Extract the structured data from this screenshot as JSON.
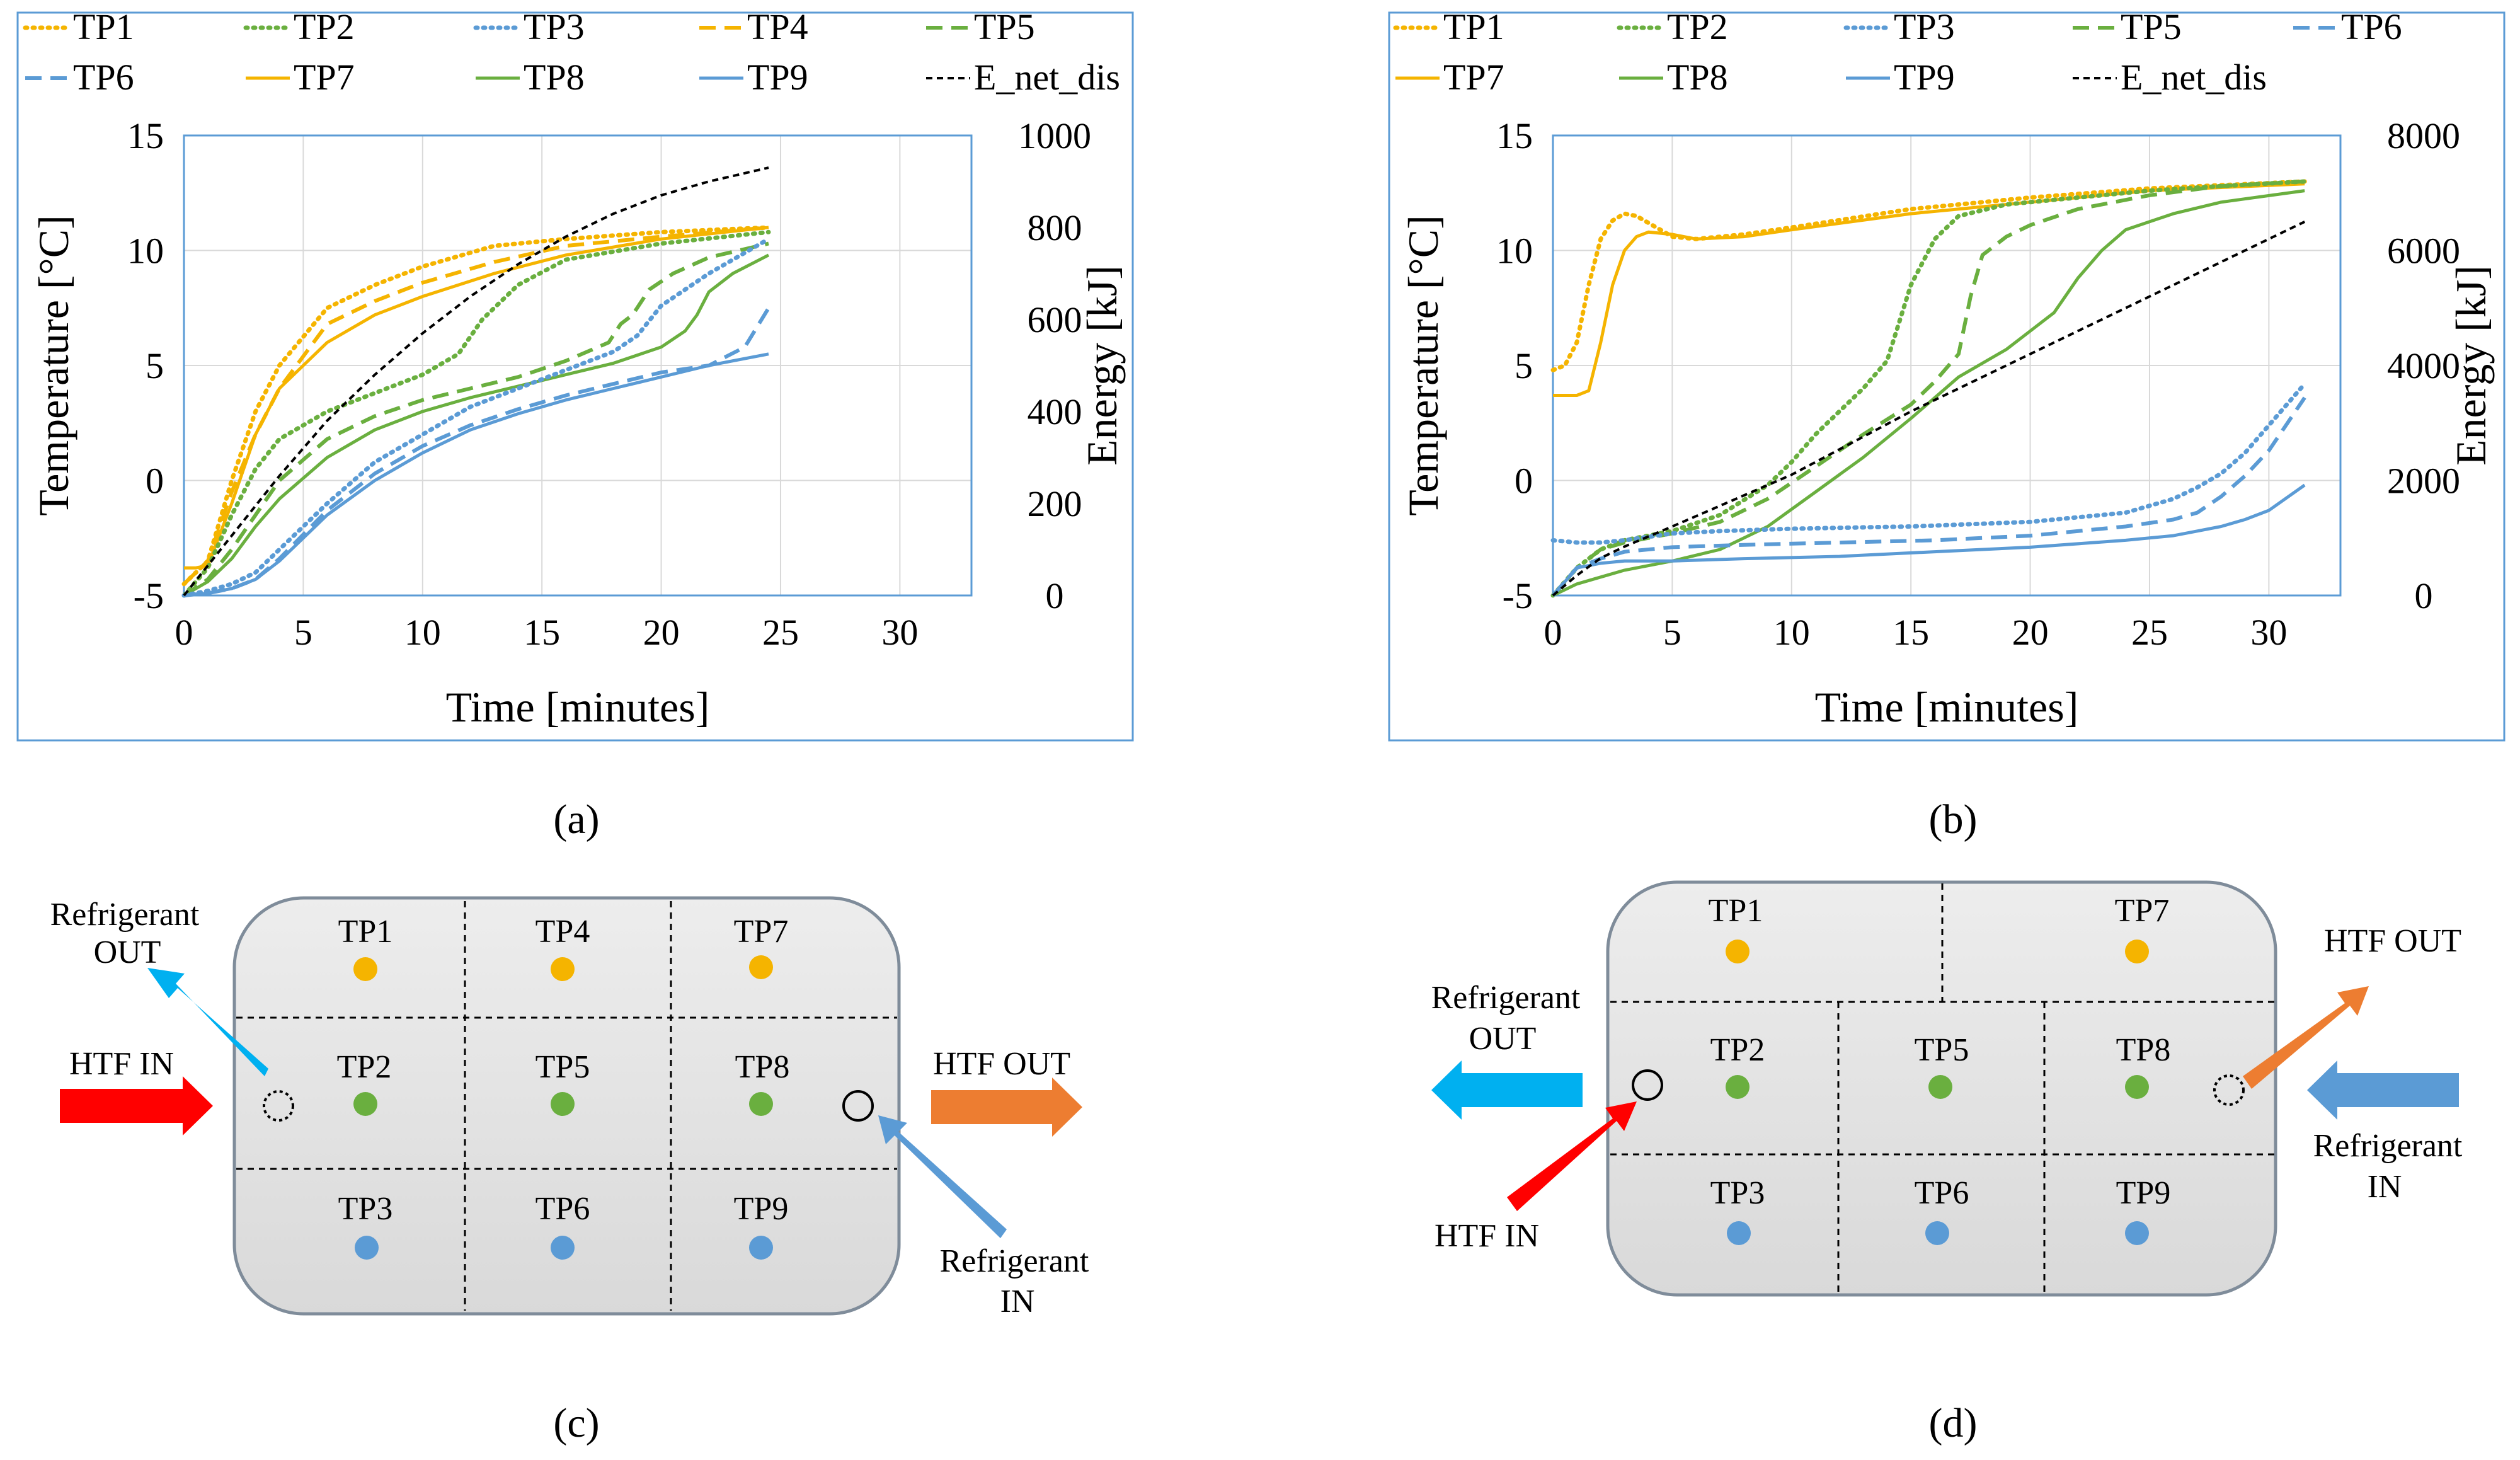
{
  "panels": {
    "a": "(a)",
    "b": "(b)",
    "c": "(c)",
    "d": "(d)"
  },
  "colors": {
    "yellow": "#F5B400",
    "green": "#6AAF3F",
    "blue": "#5B9BD5",
    "black": "#000000",
    "red": "#FF0000",
    "cyan": "#00B0F0",
    "orange": "#ED7D31",
    "steelblue": "#5B9BD5",
    "plot_frame": "#5B9BD5",
    "grid": "#D9D9D9",
    "box_fill": "#E6E6E6"
  },
  "chart_data": [
    {
      "id": "a",
      "type": "line",
      "xlabel": "Time [minutes]",
      "ylabel": "Temperature [°C]",
      "y2label": "Energy [kJ]",
      "xlim": [
        0,
        33
      ],
      "xticks": [
        0,
        5,
        10,
        15,
        20,
        25,
        30
      ],
      "ylim": [
        -5,
        15
      ],
      "yticks": [
        -5,
        0,
        5,
        10,
        15
      ],
      "y2lim": [
        0,
        1000
      ],
      "y2ticks": [
        0,
        200,
        400,
        600,
        800,
        1000
      ],
      "legend": [
        {
          "key": "TP1",
          "label": "TP1",
          "color": "#F5B400",
          "dash": "dot"
        },
        {
          "key": "TP2",
          "label": "TP2",
          "color": "#6AAF3F",
          "dash": "dot"
        },
        {
          "key": "TP3",
          "label": "TP3",
          "color": "#5B9BD5",
          "dash": "dot"
        },
        {
          "key": "TP4",
          "label": "TP4",
          "color": "#F5B400",
          "dash": "dash"
        },
        {
          "key": "TP5",
          "label": "TP5",
          "color": "#6AAF3F",
          "dash": "dash"
        },
        {
          "key": "TP6",
          "label": "TP6",
          "color": "#5B9BD5",
          "dash": "dash"
        },
        {
          "key": "TP7",
          "label": "TP7",
          "color": "#F5B400",
          "dash": "solid"
        },
        {
          "key": "TP8",
          "label": "TP8",
          "color": "#6AAF3F",
          "dash": "solid"
        },
        {
          "key": "TP9",
          "label": "TP9",
          "color": "#5B9BD5",
          "dash": "solid"
        },
        {
          "key": "E",
          "label": "E_net_dis",
          "color": "#000000",
          "dash": "fine"
        }
      ],
      "series": [
        {
          "name": "TP1",
          "axis": "y",
          "x": [
            0,
            1,
            2,
            3,
            4,
            6,
            8,
            10,
            13,
            16,
            20,
            24.5
          ],
          "y": [
            -4.5,
            -3.5,
            0,
            3,
            5,
            7.5,
            8.5,
            9.3,
            10.2,
            10.5,
            10.8,
            11
          ]
        },
        {
          "name": "TP4",
          "axis": "y",
          "x": [
            0,
            1,
            2,
            3,
            4,
            6,
            8,
            10,
            13,
            16,
            20,
            24.5
          ],
          "y": [
            -4.5,
            -3.5,
            -0.5,
            2,
            4,
            6.8,
            7.8,
            8.6,
            9.5,
            10.2,
            10.6,
            11
          ]
        },
        {
          "name": "TP7",
          "axis": "y",
          "x": [
            0,
            0.5,
            1,
            2,
            3,
            4,
            6,
            8,
            10,
            13,
            16,
            20,
            24.5
          ],
          "y": [
            -3.8,
            -3.8,
            -3.7,
            -1,
            2,
            4,
            6,
            7.2,
            8,
            9,
            9.8,
            10.5,
            11
          ]
        },
        {
          "name": "TP2",
          "axis": "y",
          "x": [
            0,
            1,
            2,
            3,
            4,
            6,
            8,
            10,
            11.5,
            12.5,
            14,
            16,
            20,
            24.5
          ],
          "y": [
            -5,
            -3.8,
            -1.5,
            0.5,
            1.8,
            3,
            3.8,
            4.6,
            5.5,
            7,
            8.5,
            9.6,
            10.3,
            10.8
          ]
        },
        {
          "name": "TP5",
          "axis": "y",
          "x": [
            0,
            1,
            2,
            3,
            4,
            6,
            8,
            10,
            12,
            14,
            16,
            17.8,
            18.3,
            18.8,
            19.5,
            20.5,
            22,
            24.5
          ],
          "y": [
            -5,
            -4.3,
            -3,
            -1.5,
            0,
            1.8,
            2.8,
            3.5,
            4,
            4.5,
            5.2,
            6,
            6.8,
            7.2,
            8.3,
            9,
            9.7,
            10.3
          ]
        },
        {
          "name": "TP8",
          "axis": "y",
          "x": [
            0,
            1,
            2,
            3,
            4,
            6,
            8,
            10,
            12,
            14,
            16,
            18,
            20,
            21,
            21.5,
            22,
            23,
            24.5
          ],
          "y": [
            -5,
            -4.4,
            -3.4,
            -2,
            -0.8,
            1,
            2.2,
            3,
            3.6,
            4.1,
            4.6,
            5.1,
            5.8,
            6.5,
            7.2,
            8.2,
            9,
            9.8
          ]
        },
        {
          "name": "TP3",
          "axis": "y",
          "x": [
            0,
            1,
            2,
            3,
            4,
            6,
            8,
            10,
            12,
            14,
            16,
            18,
            19,
            20,
            22,
            24.5
          ],
          "y": [
            -5,
            -4.8,
            -4.5,
            -4,
            -3,
            -1,
            0.8,
            2,
            3.2,
            4,
            4.8,
            5.6,
            6.3,
            7.6,
            9,
            10.5
          ]
        },
        {
          "name": "TP6",
          "axis": "y",
          "x": [
            0,
            1,
            2,
            3,
            4,
            6,
            8,
            10,
            12,
            14,
            16,
            18,
            20,
            22,
            23.5,
            24.5
          ],
          "y": [
            -5,
            -4.9,
            -4.7,
            -4.3,
            -3.4,
            -1.3,
            0.3,
            1.5,
            2.4,
            3.1,
            3.7,
            4.2,
            4.7,
            5,
            5.8,
            7.5
          ]
        },
        {
          "name": "TP9",
          "axis": "y",
          "x": [
            0,
            1,
            2,
            3,
            4,
            6,
            8,
            10,
            12,
            14,
            16,
            18,
            20,
            22,
            24.5
          ],
          "y": [
            -5,
            -4.9,
            -4.7,
            -4.3,
            -3.5,
            -1.5,
            0,
            1.2,
            2.2,
            2.9,
            3.5,
            4,
            4.5,
            5,
            5.5
          ]
        },
        {
          "name": "E",
          "axis": "y2",
          "x": [
            0,
            2,
            4,
            6,
            8,
            10,
            12,
            14,
            16,
            18,
            20,
            22,
            24.5
          ],
          "y": [
            0,
            130,
            260,
            380,
            480,
            570,
            650,
            720,
            780,
            830,
            870,
            900,
            930
          ]
        }
      ]
    },
    {
      "id": "b",
      "type": "line",
      "xlabel": "Time [minutes]",
      "ylabel": "Temperature [°C]",
      "y2label": "Energy [kJ]",
      "xlim": [
        0,
        33
      ],
      "xticks": [
        0,
        5,
        10,
        15,
        20,
        25,
        30
      ],
      "ylim": [
        -5,
        15
      ],
      "yticks": [
        -5,
        0,
        5,
        10,
        15
      ],
      "y2lim": [
        0,
        8000
      ],
      "y2ticks": [
        0,
        2000,
        4000,
        6000,
        8000
      ],
      "legend": [
        {
          "key": "TP1",
          "label": "TP1",
          "color": "#F5B400",
          "dash": "dot"
        },
        {
          "key": "TP2",
          "label": "TP2",
          "color": "#6AAF3F",
          "dash": "dot"
        },
        {
          "key": "TP3",
          "label": "TP3",
          "color": "#5B9BD5",
          "dash": "dot"
        },
        {
          "key": "TP5",
          "label": "TP5",
          "color": "#6AAF3F",
          "dash": "dash"
        },
        {
          "key": "TP6",
          "label": "TP6",
          "color": "#5B9BD5",
          "dash": "dash"
        },
        {
          "key": "TP7",
          "label": "TP7",
          "color": "#F5B400",
          "dash": "solid"
        },
        {
          "key": "TP8",
          "label": "TP8",
          "color": "#6AAF3F",
          "dash": "solid"
        },
        {
          "key": "TP9",
          "label": "TP9",
          "color": "#5B9BD5",
          "dash": "solid"
        },
        {
          "key": "E",
          "label": "E_net_dis",
          "color": "#000000",
          "dash": "fine"
        }
      ],
      "series": [
        {
          "name": "TP1",
          "axis": "y",
          "x": [
            0,
            0.5,
            1,
            1.5,
            2,
            2.5,
            3,
            3.5,
            4,
            5,
            6,
            8,
            10,
            15,
            20,
            25,
            31.5
          ],
          "y": [
            4.8,
            5,
            6,
            8.5,
            10.5,
            11.3,
            11.6,
            11.5,
            11.2,
            10.6,
            10.5,
            10.7,
            11,
            11.8,
            12.3,
            12.7,
            13
          ]
        },
        {
          "name": "TP7",
          "axis": "y",
          "x": [
            0,
            1,
            1.5,
            2,
            2.5,
            3,
            3.5,
            4,
            5,
            6,
            8,
            10,
            15,
            20,
            25,
            31.5
          ],
          "y": [
            3.7,
            3.7,
            3.9,
            6,
            8.5,
            10,
            10.6,
            10.8,
            10.7,
            10.5,
            10.6,
            10.9,
            11.6,
            12.1,
            12.6,
            12.9
          ]
        },
        {
          "name": "TP2",
          "axis": "y",
          "x": [
            0,
            1,
            2,
            3,
            5,
            7,
            9,
            10,
            11,
            12,
            13,
            14,
            15,
            16,
            17,
            19,
            22,
            25,
            28,
            31.5
          ],
          "y": [
            -5,
            -3.8,
            -3,
            -2.6,
            -2.2,
            -1.5,
            -0.2,
            0.8,
            2,
            3,
            4,
            5.2,
            8.5,
            10.5,
            11.5,
            12,
            12.3,
            12.6,
            12.8,
            13
          ]
        },
        {
          "name": "TP5",
          "axis": "y",
          "x": [
            0,
            1,
            2,
            3,
            5,
            7,
            9,
            11,
            13,
            15,
            16,
            17,
            17.5,
            18,
            19,
            20,
            22,
            25,
            28,
            31.5
          ],
          "y": [
            -5,
            -3.8,
            -3,
            -2.7,
            -2.3,
            -1.8,
            -0.8,
            0.6,
            2,
            3.3,
            4.3,
            5.5,
            8,
            9.8,
            10.6,
            11.1,
            11.8,
            12.4,
            12.8,
            13
          ]
        },
        {
          "name": "TP8",
          "axis": "y",
          "x": [
            0,
            1,
            2,
            3,
            5,
            7,
            9,
            11,
            13,
            15,
            17,
            19,
            20,
            21,
            22,
            23,
            24,
            26,
            28,
            31.5
          ],
          "y": [
            -5,
            -4.5,
            -4.2,
            -3.9,
            -3.5,
            -3,
            -2,
            -0.5,
            1,
            2.7,
            4.5,
            5.7,
            6.5,
            7.3,
            8.8,
            10,
            10.9,
            11.6,
            12.1,
            12.6
          ]
        },
        {
          "name": "TP3",
          "axis": "y",
          "x": [
            0,
            1,
            2,
            3,
            5,
            7,
            10,
            15,
            20,
            24,
            26,
            27,
            28,
            29,
            30,
            31.5
          ],
          "y": [
            -2.6,
            -2.7,
            -2.7,
            -2.6,
            -2.3,
            -2.2,
            -2.1,
            -2,
            -1.8,
            -1.4,
            -0.8,
            -0.3,
            0.3,
            1.2,
            2.4,
            4.2
          ]
        },
        {
          "name": "TP6",
          "axis": "y",
          "x": [
            0,
            1,
            2,
            3,
            5,
            8,
            12,
            16,
            20,
            24,
            26,
            27,
            28,
            29,
            30,
            31.5
          ],
          "y": [
            -5,
            -3.8,
            -3.4,
            -3.1,
            -2.9,
            -2.8,
            -2.7,
            -2.6,
            -2.4,
            -2,
            -1.7,
            -1.4,
            -0.7,
            0.2,
            1.3,
            3.6
          ]
        },
        {
          "name": "TP9",
          "axis": "y",
          "x": [
            0,
            1,
            2,
            3,
            5,
            8,
            12,
            16,
            20,
            24,
            26,
            27,
            28,
            29,
            30,
            31.5
          ],
          "y": [
            -5,
            -3.8,
            -3.6,
            -3.5,
            -3.5,
            -3.4,
            -3.3,
            -3.1,
            -2.9,
            -2.6,
            -2.4,
            -2.2,
            -2,
            -1.7,
            -1.3,
            -0.2
          ]
        },
        {
          "name": "E",
          "axis": "y2",
          "x": [
            0,
            1,
            2,
            3,
            5,
            10,
            15,
            20,
            25,
            31.5
          ],
          "y": [
            0,
            350,
            650,
            850,
            1200,
            2100,
            3200,
            4200,
            5200,
            6500
          ]
        }
      ]
    }
  ],
  "diagram_c": {
    "points": [
      {
        "label": "TP1",
        "color": "yellow"
      },
      {
        "label": "TP4",
        "color": "yellow"
      },
      {
        "label": "TP7",
        "color": "yellow"
      },
      {
        "label": "TP2",
        "color": "green"
      },
      {
        "label": "TP5",
        "color": "green"
      },
      {
        "label": "TP8",
        "color": "green"
      },
      {
        "label": "TP3",
        "color": "blue"
      },
      {
        "label": "TP6",
        "color": "blue"
      },
      {
        "label": "TP9",
        "color": "blue"
      }
    ],
    "refrigerant_out_line1": "Refrigerant",
    "refrigerant_out_line2": "OUT",
    "htf_in": "HTF IN",
    "htf_out": "HTF OUT",
    "refrigerant_in_line1": "Refrigerant",
    "refrigerant_in_line2": "IN"
  },
  "diagram_d": {
    "points": [
      {
        "label": "TP1",
        "color": "yellow"
      },
      {
        "label": "TP7",
        "color": "yellow"
      },
      {
        "label": "TP2",
        "color": "green"
      },
      {
        "label": "TP5",
        "color": "green"
      },
      {
        "label": "TP8",
        "color": "green"
      },
      {
        "label": "TP3",
        "color": "blue"
      },
      {
        "label": "TP6",
        "color": "blue"
      },
      {
        "label": "TP9",
        "color": "blue"
      }
    ],
    "refrigerant_out_line1": "Refrigerant",
    "refrigerant_out_line2": "OUT",
    "htf_in": "HTF IN",
    "htf_out": "HTF OUT",
    "refrigerant_in_line1": "Refrigerant",
    "refrigerant_in_line2": "IN"
  }
}
